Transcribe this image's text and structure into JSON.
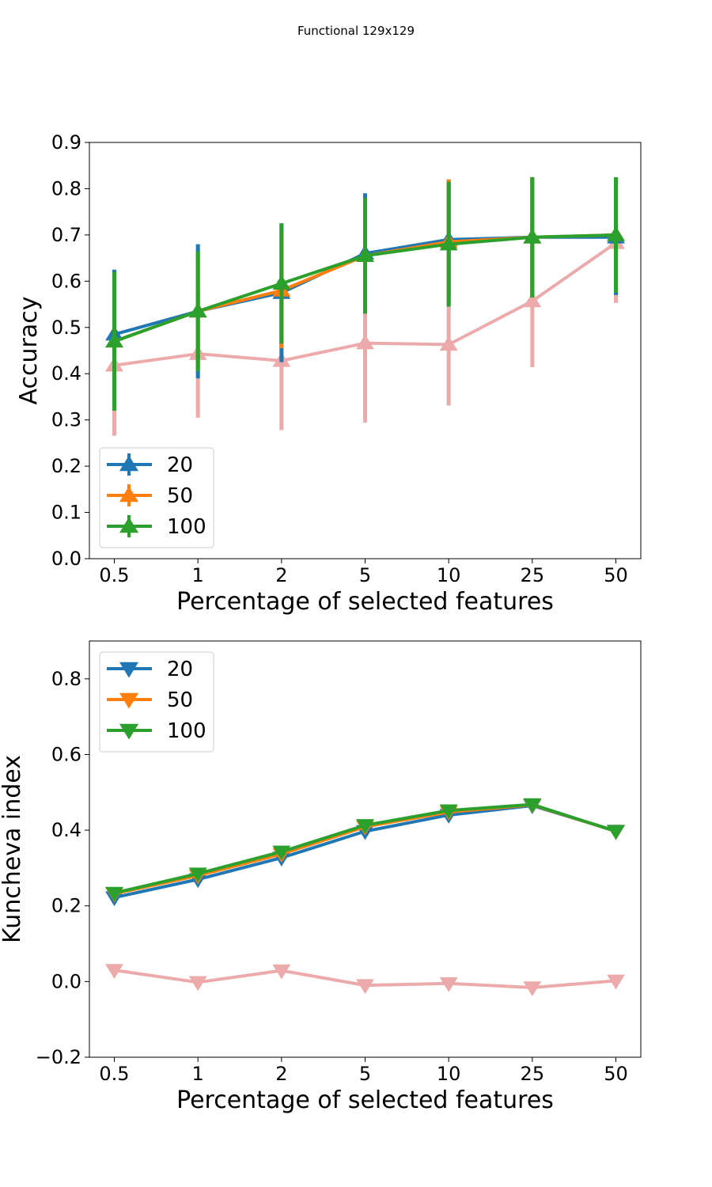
{
  "figure": {
    "suptitle": "Functional 129x129"
  },
  "chart_data": [
    {
      "type": "line",
      "xlabel": "Percentage of selected features",
      "ylabel": "Accuracy",
      "categories": [
        "0.5",
        "1",
        "2",
        "5",
        "10",
        "25",
        "50"
      ],
      "ylim": [
        0.0,
        0.9
      ],
      "yticks": [
        "0.0",
        "0.1",
        "0.2",
        "0.3",
        "0.4",
        "0.5",
        "0.6",
        "0.7",
        "0.8",
        "0.9"
      ],
      "marker": "triangle-up",
      "error_bars": true,
      "legend_position": "lower-left",
      "series": [
        {
          "name": "20",
          "color": "#1f77b4",
          "values": [
            0.485,
            0.535,
            0.575,
            0.66,
            0.69,
            0.695,
            0.695
          ],
          "err": [
            0.14,
            0.145,
            0.15,
            0.13,
            0.13,
            0.13,
            0.125
          ]
        },
        {
          "name": "50",
          "color": "#ff7f0e",
          "values": [
            0.47,
            0.535,
            0.58,
            0.655,
            0.685,
            0.695,
            0.7
          ],
          "err": [
            0.1,
            0.12,
            0.125,
            0.12,
            0.135,
            0.13,
            0.12
          ]
        },
        {
          "name": "100",
          "color": "#2ca02c",
          "values": [
            0.47,
            0.535,
            0.595,
            0.655,
            0.68,
            0.695,
            0.7
          ],
          "err": [
            0.15,
            0.13,
            0.13,
            0.125,
            0.135,
            0.13,
            0.125
          ]
        },
        {
          "name": "",
          "color": "#e06666",
          "alpha": 0.55,
          "values": [
            0.418,
            0.443,
            0.428,
            0.466,
            0.463,
            0.557,
            0.683
          ],
          "err": [
            0.152,
            0.138,
            0.15,
            0.172,
            0.132,
            0.143,
            0.13
          ]
        }
      ]
    },
    {
      "type": "line",
      "xlabel": "Percentage of selected features",
      "ylabel": "Kuncheva index",
      "categories": [
        "0.5",
        "1",
        "2",
        "5",
        "10",
        "25",
        "50"
      ],
      "ylim": [
        -0.2,
        0.9
      ],
      "yticks": [
        "−0.2",
        "0.0",
        "0.2",
        "0.4",
        "0.6",
        "0.8"
      ],
      "marker": "triangle-down",
      "error_bars": false,
      "legend_position": "upper-left",
      "series": [
        {
          "name": "20",
          "color": "#1f77b4",
          "values": [
            0.222,
            0.27,
            0.327,
            0.397,
            0.44,
            0.465,
            0.398
          ]
        },
        {
          "name": "50",
          "color": "#ff7f0e",
          "values": [
            0.232,
            0.28,
            0.337,
            0.409,
            0.448,
            0.467,
            0.397
          ]
        },
        {
          "name": "100",
          "color": "#2ca02c",
          "values": [
            0.234,
            0.285,
            0.343,
            0.413,
            0.452,
            0.468,
            0.397
          ]
        },
        {
          "name": "",
          "color": "#e06666",
          "alpha": 0.55,
          "values": [
            0.03,
            -0.002,
            0.029,
            -0.01,
            -0.005,
            -0.016,
            0.002
          ]
        }
      ]
    }
  ]
}
